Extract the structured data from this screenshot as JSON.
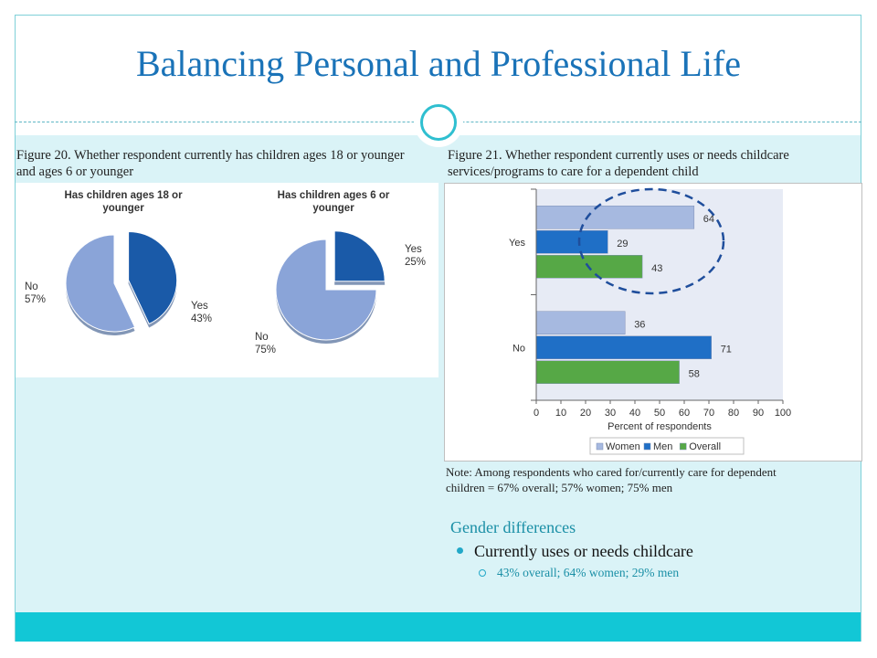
{
  "title": "Balancing Personal and Professional Life",
  "figure20_caption": "Figure 20.  Whether respondent currently has children ages 18 or younger and ages 6 or younger",
  "figure21_caption": "Figure 21. Whether respondent currently uses or needs childcare services/programs  to care for a dependent child",
  "note": "Note: Among respondents who cared for/currently care for dependent children = 67% overall; 57% women; 75% men",
  "gender": {
    "heading": "Gender differences",
    "bullet": "Currently uses or needs childcare",
    "sub_bullet": "43% overall; 64% women; 29% men"
  },
  "colors": {
    "title": "#1a73b8",
    "accent": "#12c7d6",
    "band": "#daf3f7",
    "women": "#a6b9e0",
    "men": "#1f6fc6",
    "overall": "#56a846",
    "pie_no": "#8aa4d8",
    "pie_yes": "#1a5aa8",
    "highlight_ellipse": "#1f4e9c"
  },
  "chart_data": [
    {
      "type": "pie",
      "title_lines": [
        "Has children ages 18 or",
        "younger"
      ],
      "slices": [
        {
          "label": "Yes",
          "value": 43,
          "pct_text": "43%"
        },
        {
          "label": "No",
          "value": 57,
          "pct_text": "57%"
        }
      ]
    },
    {
      "type": "pie",
      "title_lines": [
        "Has children ages 6 or",
        "younger"
      ],
      "slices": [
        {
          "label": "Yes",
          "value": 25,
          "pct_text": "25%"
        },
        {
          "label": "No",
          "value": 75,
          "pct_text": "75%"
        }
      ]
    },
    {
      "type": "bar",
      "orientation": "horizontal",
      "categories": [
        "Yes",
        "No"
      ],
      "series": [
        {
          "name": "Women",
          "values": [
            64,
            36
          ]
        },
        {
          "name": "Men",
          "values": [
            29,
            71
          ]
        },
        {
          "name": "Overall",
          "values": [
            43,
            58
          ]
        }
      ],
      "xlabel": "Percent of respondents",
      "xlim": [
        0,
        100
      ],
      "xticks": [
        "0",
        "10",
        "20",
        "30",
        "40",
        "50",
        "60",
        "70",
        "80",
        "90",
        "100"
      ],
      "legend": "bottom",
      "highlight": "Yes"
    }
  ]
}
